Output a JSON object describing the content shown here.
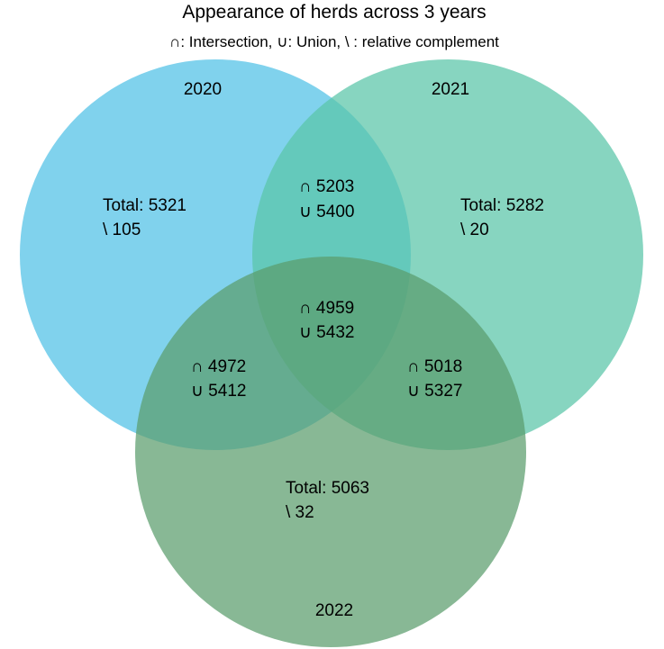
{
  "title": "Appearance of herds across 3 years",
  "subtitle": "∩: Intersection,  ∪: Union,  \\ : relative complement",
  "colors": {
    "set_2020": "#5cc5e8",
    "set_2021": "#59c5a7",
    "set_2022": "#5a9c6c"
  },
  "sets": {
    "y2020": {
      "name": "2020",
      "total": "Total: 5321",
      "complement": "\\ 105"
    },
    "y2021": {
      "name": "2021",
      "total": "Total: 5282",
      "complement": "\\ 20"
    },
    "y2022": {
      "name": "2022",
      "total": "Total: 5063",
      "complement": "\\ 32"
    }
  },
  "overlaps": {
    "y2020_y2021": {
      "intersection": "∩ 5203",
      "union": "∪ 5400"
    },
    "y2020_y2022": {
      "intersection": "∩ 4972",
      "union": "∪ 5412"
    },
    "y2021_y2022": {
      "intersection": "∩ 5018",
      "union": "∪ 5327"
    },
    "all_three": {
      "intersection": "∩ 4959",
      "union": "∪ 5432"
    }
  }
}
